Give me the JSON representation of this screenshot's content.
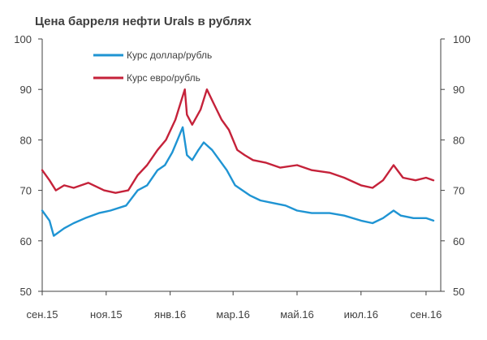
{
  "chart_data": {
    "type": "line",
    "title": "Цена барреля нефти Urals в рублях",
    "xlabel": "",
    "ylabel": "",
    "ylim": [
      50,
      100
    ],
    "yticks": [
      50,
      60,
      70,
      80,
      90,
      100
    ],
    "xlim": [
      "2015-09-01",
      "2016-09-15"
    ],
    "x_ticks": [
      {
        "label": "сен.15",
        "date": "2015-09-01"
      },
      {
        "label": "ноя.15",
        "date": "2015-11-01"
      },
      {
        "label": "янв.16",
        "date": "2016-01-01"
      },
      {
        "label": "мар.16",
        "date": "2016-03-01"
      },
      {
        "label": "май.16",
        "date": "2016-05-01"
      },
      {
        "label": "июл.16",
        "date": "2016-07-01"
      },
      {
        "label": "сен.16",
        "date": "2016-09-01"
      }
    ],
    "grid": false,
    "secondary_y_axis": true,
    "legend": "top-left",
    "series": [
      {
        "name": "Курс доллар/рубль",
        "color": "#1f94d3",
        "points": [
          [
            "2015-09-01",
            66
          ],
          [
            "2015-09-08",
            64
          ],
          [
            "2015-09-12",
            61
          ],
          [
            "2015-09-22",
            62.5
          ],
          [
            "2015-10-01",
            63.5
          ],
          [
            "2015-10-12",
            64.5
          ],
          [
            "2015-10-25",
            65.5
          ],
          [
            "2015-11-05",
            66
          ],
          [
            "2015-11-20",
            67
          ],
          [
            "2015-12-01",
            70
          ],
          [
            "2015-12-10",
            71
          ],
          [
            "2015-12-20",
            74
          ],
          [
            "2015-12-27",
            75
          ],
          [
            "2016-01-03",
            77.5
          ],
          [
            "2016-01-08",
            80
          ],
          [
            "2016-01-13",
            82.5
          ],
          [
            "2016-01-17",
            77
          ],
          [
            "2016-01-22",
            76
          ],
          [
            "2016-01-28",
            78
          ],
          [
            "2016-02-02",
            79.5
          ],
          [
            "2016-02-10",
            78
          ],
          [
            "2016-02-17",
            76
          ],
          [
            "2016-02-24",
            74
          ],
          [
            "2016-03-03",
            71
          ],
          [
            "2016-03-10",
            70
          ],
          [
            "2016-03-17",
            69
          ],
          [
            "2016-03-27",
            68
          ],
          [
            "2016-04-08",
            67.5
          ],
          [
            "2016-04-20",
            67
          ],
          [
            "2016-05-01",
            66
          ],
          [
            "2016-05-15",
            65.5
          ],
          [
            "2016-06-01",
            65.5
          ],
          [
            "2016-06-15",
            65
          ],
          [
            "2016-07-01",
            64
          ],
          [
            "2016-07-12",
            63.5
          ],
          [
            "2016-07-22",
            64.5
          ],
          [
            "2016-08-01",
            66
          ],
          [
            "2016-08-08",
            65
          ],
          [
            "2016-08-20",
            64.5
          ],
          [
            "2016-09-01",
            64.5
          ],
          [
            "2016-09-08",
            64
          ]
        ]
      },
      {
        "name": "Курс евро/рубль",
        "color": "#c5223a",
        "points": [
          [
            "2015-09-01",
            74
          ],
          [
            "2015-09-08",
            72
          ],
          [
            "2015-09-14",
            70
          ],
          [
            "2015-09-22",
            71
          ],
          [
            "2015-10-01",
            70.5
          ],
          [
            "2015-10-15",
            71.5
          ],
          [
            "2015-10-30",
            70
          ],
          [
            "2015-11-10",
            69.5
          ],
          [
            "2015-11-22",
            70
          ],
          [
            "2015-12-01",
            73
          ],
          [
            "2015-12-10",
            75
          ],
          [
            "2015-12-20",
            78
          ],
          [
            "2015-12-28",
            80
          ],
          [
            "2016-01-06",
            84
          ],
          [
            "2016-01-12",
            88
          ],
          [
            "2016-01-15",
            90
          ],
          [
            "2016-01-17",
            85
          ],
          [
            "2016-01-22",
            83
          ],
          [
            "2016-01-30",
            86
          ],
          [
            "2016-02-05",
            90
          ],
          [
            "2016-02-12",
            87
          ],
          [
            "2016-02-19",
            84
          ],
          [
            "2016-02-26",
            82
          ],
          [
            "2016-03-05",
            78
          ],
          [
            "2016-03-12",
            77
          ],
          [
            "2016-03-20",
            76
          ],
          [
            "2016-04-01",
            75.5
          ],
          [
            "2016-04-15",
            74.5
          ],
          [
            "2016-05-01",
            75
          ],
          [
            "2016-05-15",
            74
          ],
          [
            "2016-06-01",
            73.5
          ],
          [
            "2016-06-15",
            72.5
          ],
          [
            "2016-07-01",
            71
          ],
          [
            "2016-07-12",
            70.5
          ],
          [
            "2016-07-22",
            72
          ],
          [
            "2016-08-01",
            75
          ],
          [
            "2016-08-10",
            72.5
          ],
          [
            "2016-08-22",
            72
          ],
          [
            "2016-09-01",
            72.5
          ],
          [
            "2016-09-08",
            72
          ]
        ]
      }
    ]
  }
}
